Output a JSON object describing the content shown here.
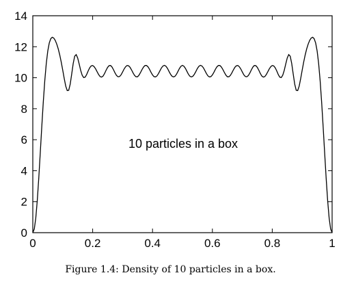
{
  "chart_data": {
    "type": "line",
    "title": "",
    "xlabel": "",
    "ylabel": "",
    "xlim": [
      0,
      1
    ],
    "ylim": [
      0,
      14
    ],
    "x_ticks": [
      "0",
      "0.2",
      "0.4",
      "0.6",
      "0.8",
      "1"
    ],
    "y_ticks": [
      "0",
      "2",
      "4",
      "6",
      "8",
      "10",
      "12",
      "14"
    ],
    "grid": false,
    "legend": "none",
    "line_color": "#000000",
    "annotation": "10 particles in a box",
    "series": [
      {
        "x": [
          0,
          0.005,
          0.01,
          0.015,
          0.02,
          0.025,
          0.03,
          0.035,
          0.04,
          0.045,
          0.05,
          0.055,
          0.06,
          0.065,
          0.07,
          0.075,
          0.08,
          0.085,
          0.09,
          0.095,
          0.1,
          0.105,
          0.11,
          0.115,
          0.12,
          0.125,
          0.13,
          0.135,
          0.14,
          0.145,
          0.15,
          0.155,
          0.16,
          0.165,
          0.17,
          0.175,
          0.18,
          0.185,
          0.19,
          0.195,
          0.2,
          0.205,
          0.21,
          0.215,
          0.22,
          0.225,
          0.23,
          0.235,
          0.24,
          0.245,
          0.25,
          0.255,
          0.26,
          0.265,
          0.27,
          0.275,
          0.28,
          0.285,
          0.29,
          0.295,
          0.3,
          0.305,
          0.31,
          0.315,
          0.32,
          0.325,
          0.33,
          0.335,
          0.34,
          0.345,
          0.35,
          0.355,
          0.36,
          0.365,
          0.37,
          0.375,
          0.38,
          0.385,
          0.39,
          0.395,
          0.4,
          0.405,
          0.41,
          0.415,
          0.42,
          0.425,
          0.43,
          0.435,
          0.44,
          0.445,
          0.45,
          0.455,
          0.46,
          0.465,
          0.47,
          0.475,
          0.48,
          0.485,
          0.49,
          0.495,
          0.5,
          0.505,
          0.51,
          0.515,
          0.52,
          0.525,
          0.53,
          0.535,
          0.54,
          0.545,
          0.55,
          0.555,
          0.56,
          0.565,
          0.57,
          0.575,
          0.58,
          0.585,
          0.59,
          0.595,
          0.6,
          0.605,
          0.61,
          0.615,
          0.62,
          0.625,
          0.63,
          0.635,
          0.64,
          0.645,
          0.65,
          0.655,
          0.66,
          0.665,
          0.67,
          0.675,
          0.68,
          0.685,
          0.69,
          0.695,
          0.7,
          0.705,
          0.71,
          0.715,
          0.72,
          0.725,
          0.73,
          0.735,
          0.74,
          0.745,
          0.75,
          0.755,
          0.76,
          0.765,
          0.77,
          0.775,
          0.78,
          0.785,
          0.79,
          0.795,
          0.8,
          0.805,
          0.81,
          0.815,
          0.82,
          0.825,
          0.83,
          0.835,
          0.84,
          0.845,
          0.85,
          0.855,
          0.86,
          0.865,
          0.87,
          0.875,
          0.88,
          0.885,
          0.89,
          0.895,
          0.9,
          0.905,
          0.91,
          0.915,
          0.92,
          0.925,
          0.93,
          0.935,
          0.94,
          0.945,
          0.95,
          0.955,
          0.96,
          0.965,
          0.97,
          0.975,
          0.98,
          0.985,
          0.99,
          0.995,
          1
        ],
        "y": [
          0,
          0.24,
          0.95,
          2.09,
          3.54,
          5.17,
          6.84,
          8.42,
          9.8,
          10.91,
          11.72,
          12.24,
          12.52,
          12.61,
          12.56,
          12.41,
          12.17,
          11.86,
          11.47,
          11.01,
          10.49,
          9.95,
          9.46,
          9.17,
          9.19,
          9.59,
          10.24,
          10.92,
          11.39,
          11.49,
          11.27,
          10.88,
          10.47,
          10.16,
          10.01,
          10.04,
          10.21,
          10.44,
          10.64,
          10.76,
          10.79,
          10.71,
          10.57,
          10.38,
          10.2,
          10.07,
          10.04,
          10.11,
          10.28,
          10.49,
          10.67,
          10.78,
          10.79,
          10.68,
          10.5,
          10.3,
          10.14,
          10.06,
          10.08,
          10.19,
          10.37,
          10.56,
          10.71,
          10.79,
          10.77,
          10.67,
          10.5,
          10.31,
          10.15,
          10.06,
          10.06,
          10.17,
          10.34,
          10.53,
          10.69,
          10.79,
          10.79,
          10.7,
          10.54,
          10.35,
          10.18,
          10.07,
          10.05,
          10.12,
          10.27,
          10.46,
          10.64,
          10.76,
          10.8,
          10.74,
          10.6,
          10.41,
          10.23,
          10.1,
          10.05,
          10.09,
          10.22,
          10.41,
          10.6,
          10.74,
          10.8,
          10.74,
          10.6,
          10.41,
          10.22,
          10.09,
          10.05,
          10.1,
          10.23,
          10.41,
          10.6,
          10.74,
          10.8,
          10.76,
          10.64,
          10.46,
          10.27,
          10.12,
          10.05,
          10.07,
          10.18,
          10.35,
          10.54,
          10.7,
          10.79,
          10.79,
          10.69,
          10.53,
          10.34,
          10.17,
          10.06,
          10.06,
          10.15,
          10.31,
          10.5,
          10.67,
          10.77,
          10.79,
          10.71,
          10.56,
          10.37,
          10.19,
          10.08,
          10.06,
          10.14,
          10.3,
          10.5,
          10.68,
          10.79,
          10.78,
          10.67,
          10.49,
          10.28,
          10.11,
          10.04,
          10.07,
          10.2,
          10.38,
          10.57,
          10.71,
          10.79,
          10.76,
          10.64,
          10.44,
          10.21,
          10.04,
          10.01,
          10.16,
          10.47,
          10.88,
          11.27,
          11.49,
          11.39,
          10.92,
          10.24,
          9.59,
          9.19,
          9.17,
          9.46,
          9.95,
          10.49,
          11.01,
          11.47,
          11.86,
          12.17,
          12.41,
          12.56,
          12.61,
          12.52,
          12.24,
          11.72,
          10.91,
          9.8,
          8.42,
          6.84,
          5.17,
          3.54,
          2.09,
          0.95,
          0.24,
          0
        ]
      }
    ]
  },
  "caption": "Figure 1.4: Density of 10 particles in a box."
}
